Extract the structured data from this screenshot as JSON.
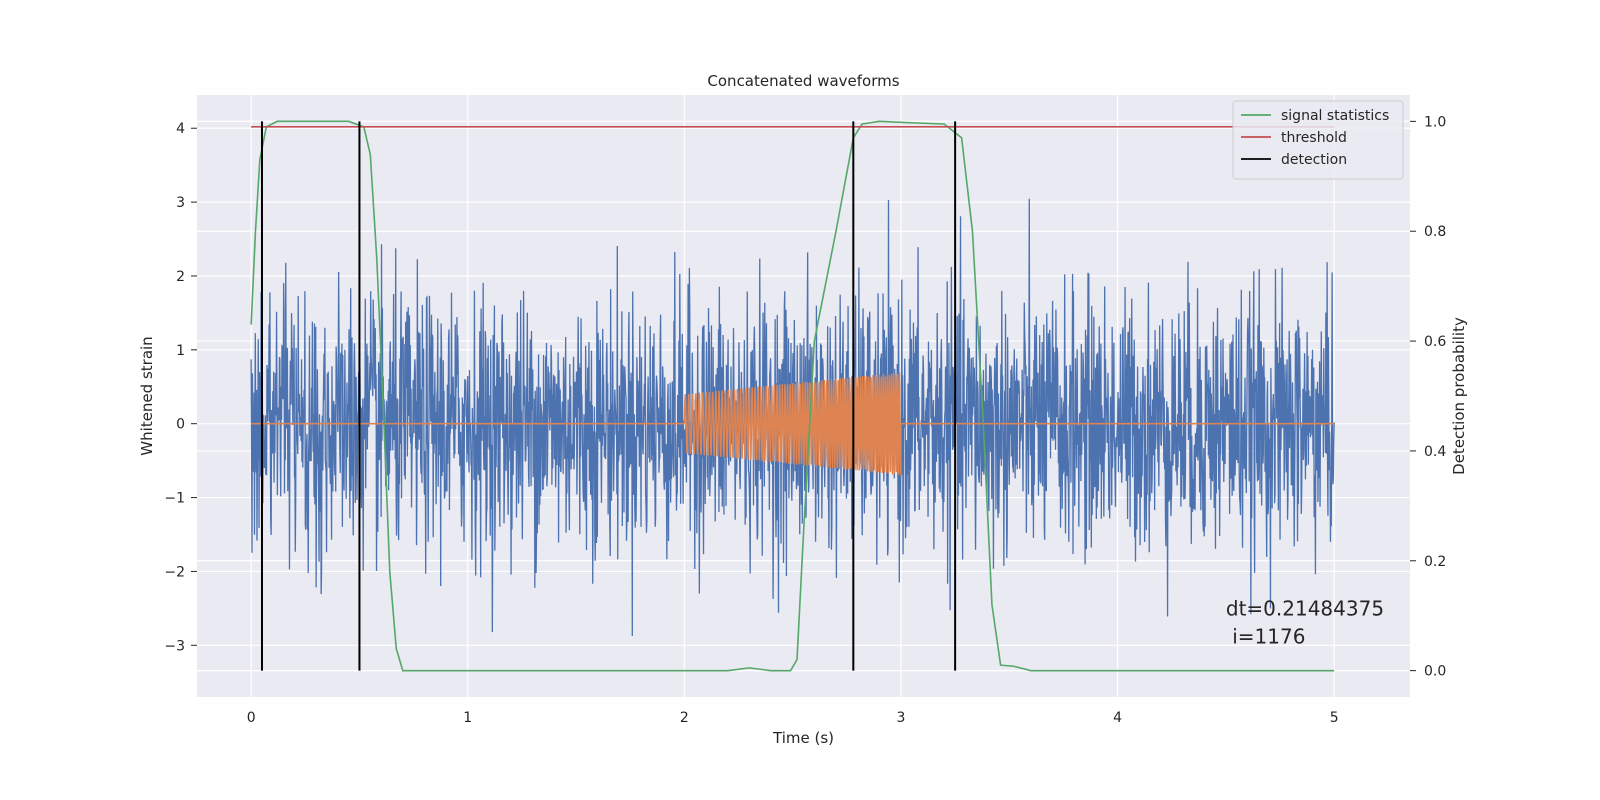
{
  "chart_data": {
    "type": "line",
    "title": "Concatenated waveforms",
    "xlabel": "Time (s)",
    "ylabel": "Whitened strain",
    "ylabel_right": "Detection probability",
    "xlim": [
      -0.25,
      5.35
    ],
    "ylim": [
      -3.7,
      4.45
    ],
    "ylim_right": [
      -0.048,
      1.048
    ],
    "x_ticks": [
      0,
      1,
      2,
      3,
      4,
      5
    ],
    "y_ticks": [
      -3,
      -2,
      -1,
      0,
      1,
      2,
      3,
      4
    ],
    "y_ticks_right": [
      0.0,
      0.2,
      0.4,
      0.6,
      0.8,
      1.0
    ],
    "x_tick_labels": [
      "0",
      "1",
      "2",
      "3",
      "4",
      "5"
    ],
    "y_tick_labels": [
      "−3",
      "−2",
      "−1",
      "0",
      "1",
      "2",
      "3",
      "4"
    ],
    "y_tick_labels_right": [
      "0.0",
      "0.2",
      "0.4",
      "0.6",
      "0.8",
      "1.0"
    ],
    "grid": true,
    "legend_position": "top-right",
    "colors": {
      "noise": "#4c72b0",
      "injection": "#dd8452",
      "signal": "#55a868",
      "threshold": "#c44e52",
      "detection": "#000000",
      "background": "#eaeaf2",
      "grid": "#ffffff"
    },
    "series": [
      {
        "role": "noise",
        "axis": "left",
        "x_range": [
          0,
          5
        ],
        "amplitude_bound": [
          -3.3,
          4.1
        ],
        "description_points": [
          [
            0,
            0
          ],
          [
            5,
            0
          ]
        ]
      },
      {
        "role": "injection",
        "axis": "left",
        "segments": [
          {
            "x": [
              0,
              2
            ],
            "y": [
              0,
              0
            ]
          },
          {
            "x": [
              2,
              3
            ],
            "y_envelope_start": 0.4,
            "y_envelope_end": 0.7,
            "chirp": true
          },
          {
            "x": [
              3,
              5
            ],
            "y": [
              0,
              0
            ]
          }
        ]
      },
      {
        "name": "signal statistics",
        "axis": "right",
        "points": [
          [
            0.0,
            0.63
          ],
          [
            0.02,
            0.8
          ],
          [
            0.04,
            0.93
          ],
          [
            0.07,
            0.99
          ],
          [
            0.12,
            1.0
          ],
          [
            0.45,
            1.0
          ],
          [
            0.52,
            0.99
          ],
          [
            0.55,
            0.94
          ],
          [
            0.58,
            0.75
          ],
          [
            0.61,
            0.48
          ],
          [
            0.64,
            0.18
          ],
          [
            0.67,
            0.04
          ],
          [
            0.7,
            0.0
          ],
          [
            0.8,
            0.0
          ],
          [
            2.2,
            0.0
          ],
          [
            2.3,
            0.005
          ],
          [
            2.4,
            0.0
          ],
          [
            2.49,
            0.0
          ],
          [
            2.52,
            0.02
          ],
          [
            2.55,
            0.25
          ],
          [
            2.6,
            0.6
          ],
          [
            2.7,
            0.8
          ],
          [
            2.78,
            0.97
          ],
          [
            2.82,
            0.995
          ],
          [
            2.9,
            1.0
          ],
          [
            3.2,
            0.995
          ],
          [
            3.28,
            0.97
          ],
          [
            3.33,
            0.8
          ],
          [
            3.38,
            0.45
          ],
          [
            3.42,
            0.12
          ],
          [
            3.46,
            0.01
          ],
          [
            3.52,
            0.008
          ],
          [
            3.6,
            0.0
          ],
          [
            5.0,
            0.0
          ]
        ]
      },
      {
        "name": "threshold",
        "axis": "right",
        "points": [
          [
            0.0,
            0.99
          ],
          [
            5.0,
            0.99
          ]
        ]
      },
      {
        "name": "detection",
        "axis": "right",
        "vlines_x": [
          0.05,
          0.5,
          2.78,
          3.25
        ],
        "vlines_range": [
          0.0,
          1.0
        ]
      }
    ],
    "legend": [
      "signal statistics",
      "threshold",
      "detection"
    ],
    "annotation": {
      "line1": "dt=0.21484375",
      "line2": " i=1176",
      "x": 4.5,
      "y": -2.6
    }
  }
}
